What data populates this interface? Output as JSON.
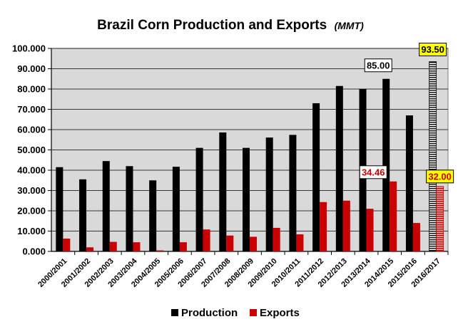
{
  "chart_data": {
    "type": "bar",
    "title": "Brazil Corn Production and Exports",
    "title_unit": "(MMT)",
    "categories": [
      "2000/2001",
      "2001/2002",
      "2002/2003",
      "2003/2004",
      "2004/2005",
      "2005/2006",
      "2006/2007",
      "2007/2008",
      "2008/2009",
      "2009/2010",
      "2010/2011",
      "2011/2012",
      "2012/2013",
      "2013/2014",
      "2014/2015",
      "2015/2016",
      "2016/2017"
    ],
    "series": [
      {
        "name": "Production",
        "color": "#000000",
        "values": [
          41.5,
          35.5,
          44.5,
          42.0,
          35.0,
          41.7,
          51.0,
          58.6,
          51.0,
          56.1,
          57.4,
          73.0,
          81.5,
          80.0,
          85.0,
          67.0,
          93.5
        ]
      },
      {
        "name": "Exports",
        "color": "#cc0000",
        "values": [
          6.3,
          2.0,
          4.7,
          4.5,
          0.5,
          4.5,
          10.8,
          7.8,
          7.2,
          11.6,
          8.4,
          24.3,
          25.0,
          21.0,
          34.46,
          14.0,
          32.0
        ]
      }
    ],
    "ylim": [
      0,
      100
    ],
    "yticks": [
      "0.000",
      "10.000",
      "20.000",
      "30.000",
      "40.000",
      "50.000",
      "60.000",
      "70.000",
      "80.000",
      "90.000",
      "100.000"
    ],
    "grid": true,
    "plot_background": "#d9d9d9",
    "projected_category": "2016/2017",
    "annotations": [
      {
        "category": "2014/2015",
        "series": "Production",
        "text": "85.00",
        "style": "white-box",
        "text_color": "#000000"
      },
      {
        "category": "2014/2015",
        "series": "Exports",
        "text": "34.46",
        "style": "white-box",
        "text_color": "#cc0000"
      },
      {
        "category": "2016/2017",
        "series": "Production",
        "text": "93.50",
        "style": "yellow-box",
        "text_color": "#000000"
      },
      {
        "category": "2016/2017",
        "series": "Exports",
        "text": "32.00",
        "style": "yellow-box",
        "text_color": "#cc0000"
      }
    ],
    "legend": {
      "placement": "bottom-center",
      "entries": [
        "Production",
        "Exports"
      ]
    }
  }
}
